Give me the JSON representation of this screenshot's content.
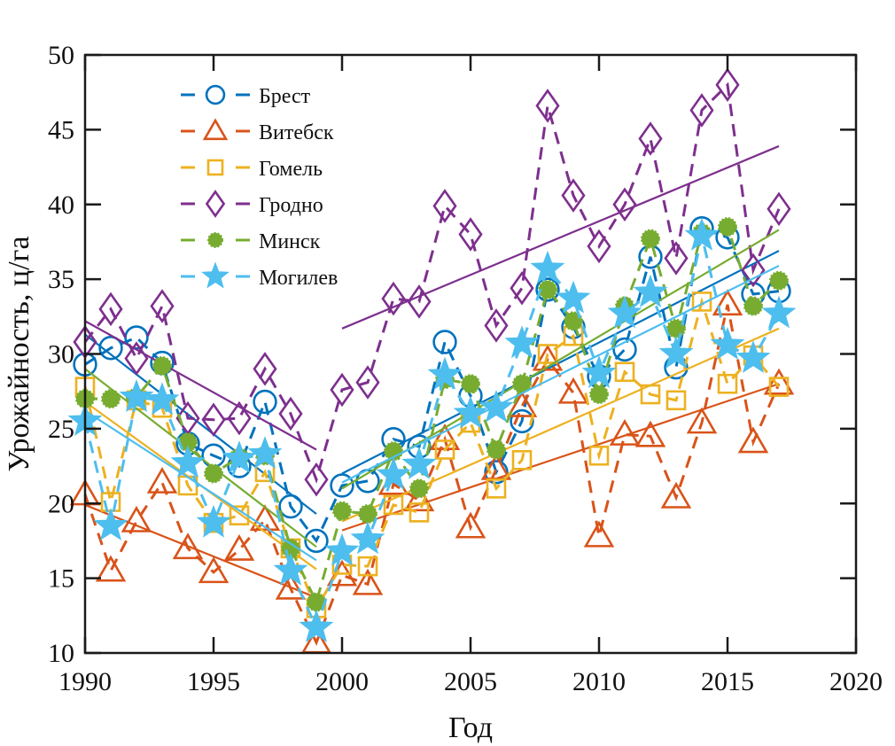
{
  "chart_data": {
    "type": "line",
    "title": "",
    "xlabel": "Год",
    "ylabel": "Урожайность, ц/га",
    "xlim": [
      1990,
      2020
    ],
    "ylim": [
      10,
      50
    ],
    "xticks": [
      "1990",
      "1995",
      "2000",
      "2005",
      "2010",
      "2015",
      "2020"
    ],
    "yticks": [
      "10",
      "15",
      "20",
      "25",
      "30",
      "35",
      "40",
      "45",
      "50"
    ],
    "grid": false,
    "legend_position": "top-left",
    "x": [
      1990,
      1991,
      1992,
      1993,
      1994,
      1995,
      1996,
      1997,
      1998,
      1999,
      2000,
      2001,
      2002,
      2003,
      2004,
      2005,
      2006,
      2007,
      2008,
      2009,
      2010,
      2011,
      2012,
      2013,
      2014,
      2015,
      2016,
      2017
    ],
    "series": [
      {
        "name": "Брест",
        "color": "#0072BD",
        "marker": "circle",
        "values": [
          29.3,
          30.4,
          31.1,
          29.4,
          24.0,
          23.2,
          22.5,
          26.8,
          19.8,
          17.5,
          21.2,
          21.5,
          24.3,
          23.8,
          30.8,
          27.2,
          22.1,
          25.5,
          34.3,
          31.8,
          28.5,
          30.3,
          36.5,
          29.1,
          38.4,
          37.8,
          34.0,
          34.2
        ],
        "trend": [
          {
            "x": [
              1990,
              1999
            ],
            "y": [
              31.3,
              19.3
            ]
          },
          {
            "x": [
              2000,
              2017
            ],
            "y": [
              22.0,
              36.9
            ]
          }
        ]
      },
      {
        "name": "Витебск",
        "color": "#D95319",
        "marker": "triangle",
        "values": [
          20.6,
          15.5,
          18.8,
          21.4,
          17.0,
          15.4,
          16.9,
          18.9,
          14.3,
          10.7,
          15.2,
          14.6,
          21.3,
          20.2,
          24.3,
          18.4,
          22.3,
          26.5,
          29.6,
          27.4,
          17.8,
          24.6,
          24.5,
          20.4,
          25.4,
          33.3,
          24.1,
          28.0
        ],
        "trend": [
          {
            "x": [
              1990,
              1999
            ],
            "y": [
              19.9,
              13.7
            ]
          },
          {
            "x": [
              2000,
              2017
            ],
            "y": [
              18.2,
              28.0
            ]
          }
        ]
      },
      {
        "name": "Гомель",
        "color": "#EDB120",
        "marker": "square",
        "values": [
          27.8,
          20.1,
          26.9,
          26.4,
          21.2,
          18.7,
          19.2,
          22.1,
          17.0,
          13.0,
          15.9,
          15.8,
          19.9,
          19.4,
          23.6,
          25.4,
          21.0,
          22.9,
          30.0,
          31.2,
          23.2,
          28.8,
          27.3,
          26.9,
          33.5,
          28.0,
          29.9,
          27.8
        ],
        "trend": [
          {
            "x": [
              1990,
              1999
            ],
            "y": [
              26.8,
              15.6
            ]
          },
          {
            "x": [
              2000,
              2017
            ],
            "y": [
              18.8,
              31.7
            ]
          }
        ]
      },
      {
        "name": "Гродно",
        "color": "#7E2F8E",
        "marker": "diamond",
        "values": [
          30.8,
          33.0,
          29.7,
          33.2,
          25.7,
          25.6,
          25.7,
          29.0,
          26.0,
          21.6,
          27.6,
          28.1,
          33.7,
          33.5,
          39.9,
          38.0,
          31.9,
          34.4,
          46.6,
          40.6,
          37.2,
          40.0,
          44.4,
          36.4,
          46.3,
          48.0,
          35.6,
          39.7
        ],
        "trend": [
          {
            "x": [
              1990,
              1999
            ],
            "y": [
              32.2,
              23.6
            ]
          },
          {
            "x": [
              2000,
              2017
            ],
            "y": [
              31.7,
              43.9
            ]
          }
        ]
      },
      {
        "name": "Минск",
        "color": "#77AC30",
        "marker": "asterisk",
        "values": [
          27.0,
          27.0,
          27.1,
          29.2,
          24.1,
          22.0,
          23.1,
          23.2,
          17.0,
          13.4,
          19.5,
          19.3,
          23.5,
          21.0,
          28.3,
          28.0,
          23.6,
          28.0,
          34.3,
          32.2,
          27.3,
          33.2,
          37.7,
          31.7,
          38.1,
          38.5,
          33.2,
          34.9
        ],
        "trend": [
          {
            "x": [
              1990,
              1999
            ],
            "y": [
              29.0,
              17.1
            ]
          },
          {
            "x": [
              2000,
              2017
            ],
            "y": [
              21.0,
              38.3
            ]
          }
        ]
      },
      {
        "name": "Могилев",
        "color": "#4DBEEE",
        "marker": "star",
        "values": [
          25.5,
          18.5,
          27.1,
          26.9,
          22.7,
          18.7,
          23.0,
          23.3,
          15.5,
          11.7,
          16.8,
          17.6,
          21.9,
          22.6,
          28.6,
          26.0,
          26.4,
          30.7,
          35.7,
          33.7,
          28.7,
          32.7,
          34.1,
          30.0,
          37.9,
          30.6,
          29.7,
          32.7
        ],
        "trend": [
          {
            "x": [
              1990,
              1999
            ],
            "y": [
              26.2,
              16.2
            ]
          },
          {
            "x": [
              2000,
              2017
            ],
            "y": [
              21.4,
              35.9
            ]
          }
        ]
      }
    ]
  }
}
